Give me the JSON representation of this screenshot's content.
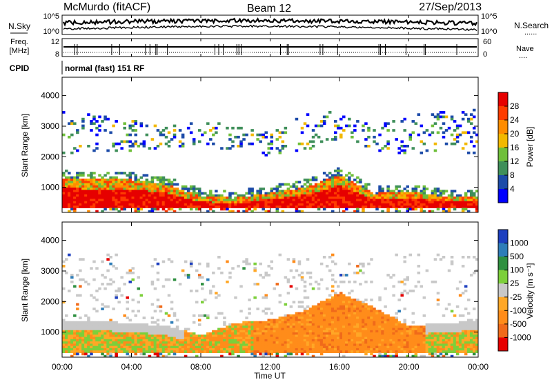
{
  "header": {
    "station": "McMurdo (fitACF)",
    "beam": "Beam 12",
    "date": "27/Sep/2013"
  },
  "noise_panel": {
    "left_label": "N.Sky",
    "right_label": "N.Search",
    "left_ticks": [
      "10^5",
      "10^0"
    ],
    "right_ticks": [
      "10^5",
      "10^0"
    ]
  },
  "freq_panel": {
    "left_label_line1": "Freq.",
    "left_label_line2": "[MHz]",
    "right_label": "Nave",
    "left_ticks": [
      "12",
      "8"
    ],
    "right_ticks": [
      "60",
      "0"
    ]
  },
  "cpid": {
    "label": "CPID",
    "text": "normal (fast) 151 RF"
  },
  "power_panel": {
    "ylabel": "Slant Range [km]",
    "yticks": [
      "1000",
      "2000",
      "3000",
      "4000"
    ],
    "colorbar_label": "Power [dB]",
    "colorbar_ticks": [
      "4",
      "8",
      "12",
      "16",
      "20",
      "24",
      "28"
    ],
    "colors": [
      "#0000ff",
      "#1c4ba8",
      "#3f8f5a",
      "#6fbf3a",
      "#f2b800",
      "#ff8c00",
      "#ff3c00",
      "#e60000"
    ]
  },
  "velocity_panel": {
    "ylabel": "Slant Range [km]",
    "yticks": [
      "1000",
      "2000",
      "3000",
      "4000"
    ],
    "colorbar_label": "Velocity [m s⁻¹]",
    "colorbar_ticks": [
      "1000",
      "500",
      "100",
      "25",
      "-25",
      "-100",
      "-500",
      "-1000"
    ],
    "colors": [
      "#1d3fbf",
      "#2e7db8",
      "#2f9040",
      "#7ccf3a",
      "#c8c8c8",
      "#ffa726",
      "#ff8c1a",
      "#f06a1a",
      "#e60000"
    ]
  },
  "x_axis": {
    "label": "Time UT",
    "ticks": [
      "00:00",
      "04:00",
      "08:00",
      "12:00",
      "16:00",
      "20:00",
      "00:00"
    ]
  },
  "chart_data": [
    {
      "type": "heatmap",
      "title": "Power",
      "xlabel": "Time UT",
      "ylabel": "Slant Range [km]",
      "xlim": [
        "00:00",
        "24:00"
      ],
      "ylim": [
        180,
        4600
      ],
      "zlabel": "Power [dB]",
      "zlim": [
        0,
        32
      ],
      "x": [
        "00:00",
        "02:00",
        "04:00",
        "06:00",
        "08:00",
        "10:00",
        "12:00",
        "14:00",
        "16:00",
        "18:00",
        "20:00",
        "22:00",
        "24:00"
      ],
      "strong_echo_top_km": [
        1300,
        1250,
        1250,
        1100,
        700,
        650,
        800,
        1000,
        1400,
        800,
        850,
        700,
        700
      ],
      "diffuse_echo_km": [
        [
          2000,
          3500
        ],
        [
          2200,
          3400
        ],
        [
          2200,
          3200
        ],
        [
          2300,
          3000
        ],
        [
          2300,
          3200
        ],
        [
          2200,
          3000
        ],
        [
          2000,
          2800
        ],
        [
          2200,
          3400
        ],
        [
          2500,
          3500
        ],
        [
          2200,
          3000
        ],
        [
          2000,
          3400
        ],
        [
          2200,
          3500
        ],
        [
          2100,
          3600
        ]
      ]
    },
    {
      "type": "heatmap",
      "title": "Velocity",
      "xlabel": "Time UT",
      "ylabel": "Slant Range [km]",
      "xlim": [
        "00:00",
        "24:00"
      ],
      "ylim": [
        180,
        4600
      ],
      "zlabel": "Velocity [m s⁻¹]",
      "zlim": [
        -1000,
        1000
      ],
      "x": [
        "00:00",
        "02:00",
        "04:00",
        "06:00",
        "08:00",
        "10:00",
        "12:00",
        "14:00",
        "16:00",
        "18:00",
        "20:00",
        "22:00",
        "24:00"
      ],
      "echo_top_km": [
        1400,
        1350,
        1300,
        1200,
        900,
        1300,
        1400,
        1700,
        2300,
        1800,
        1200,
        1300,
        1350
      ]
    }
  ]
}
